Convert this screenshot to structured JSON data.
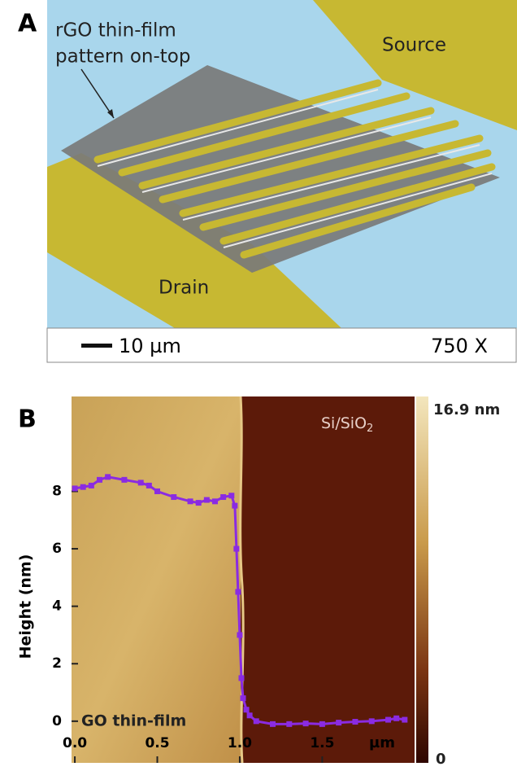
{
  "panel_a": {
    "label": "A",
    "annotation": [
      "rGO thin-film",
      "pattern on-top"
    ],
    "source": "Source",
    "drain": "Drain",
    "scale_bar": "10 µm",
    "magnification": "750 X"
  },
  "chart_data": {
    "type": "line",
    "panel_label": "B",
    "y_label": "Height (nm)",
    "x_label": "µm",
    "region_labels": {
      "substrate": {
        "base": "Si/SiO",
        "subscript": "2"
      },
      "film": "GO thin-film"
    },
    "colorbar": {
      "max_label": "16.9 nm",
      "min_label": "0"
    },
    "x": [
      0,
      0.05,
      0.1,
      0.15,
      0.2,
      0.3,
      0.4,
      0.45,
      0.5,
      0.6,
      0.7,
      0.75,
      0.8,
      0.85,
      0.9,
      0.95,
      0.97,
      0.98,
      0.99,
      1.0,
      1.01,
      1.02,
      1.04,
      1.06,
      1.1,
      1.2,
      1.3,
      1.4,
      1.5,
      1.6,
      1.7,
      1.8,
      1.9,
      1.95,
      2.0
    ],
    "values": [
      8.1,
      8.15,
      8.2,
      8.4,
      8.5,
      8.4,
      8.3,
      8.2,
      8.0,
      7.8,
      7.65,
      7.6,
      7.7,
      7.65,
      7.8,
      7.85,
      7.5,
      6.0,
      4.5,
      3.0,
      1.5,
      0.8,
      0.4,
      0.2,
      0.0,
      -0.1,
      -0.1,
      -0.08,
      -0.1,
      -0.05,
      -0.02,
      0.0,
      0.05,
      0.1,
      0.05
    ],
    "color": "#8a2be2",
    "xlim": [
      -0.02,
      2.06
    ],
    "ylim": [
      -1.45,
      11.3
    ],
    "xticks": [
      {
        "value": 0,
        "label": "0.0"
      },
      0.5,
      {
        "value": 1,
        "label": "1.0"
      },
      1.5
    ],
    "yticks": [
      0,
      2,
      4,
      6,
      8
    ]
  }
}
